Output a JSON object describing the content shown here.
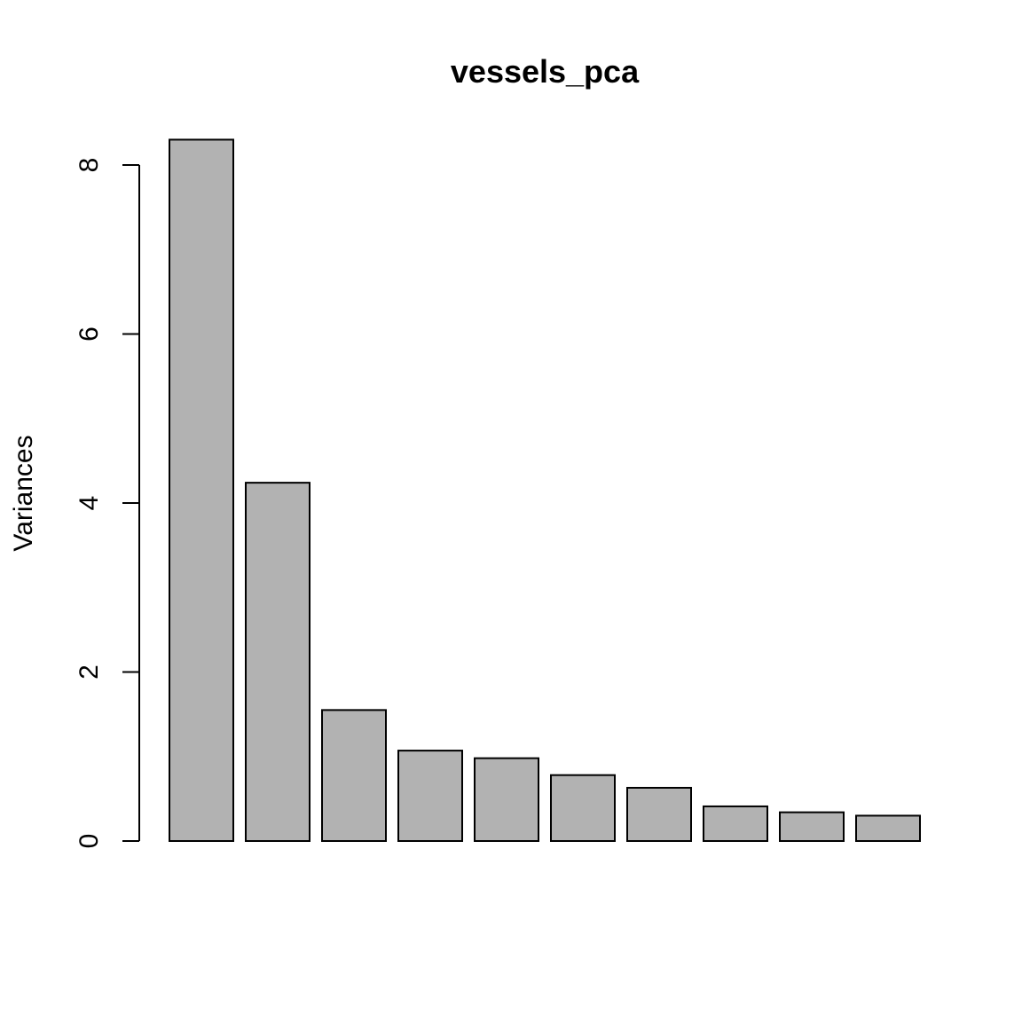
{
  "chart_data": {
    "type": "bar",
    "title": "vessels_pca",
    "xlabel": "",
    "ylabel": "Variances",
    "categories": [
      "",
      "",
      "",
      "",
      "",
      "",
      "",
      "",
      "",
      ""
    ],
    "values": [
      8.3,
      4.24,
      1.55,
      1.07,
      0.98,
      0.78,
      0.63,
      0.41,
      0.34,
      0.3
    ],
    "ylim": [
      0,
      8
    ],
    "yticks": [
      0,
      2,
      4,
      6,
      8
    ],
    "ytick_labels": [
      "0",
      "2",
      "4",
      "6",
      "8"
    ],
    "grid": false,
    "legend": "none",
    "colors": {
      "bar_fill": "#b2b2b2",
      "bar_stroke": "#000000",
      "axis": "#000000",
      "background": "#ffffff"
    }
  }
}
